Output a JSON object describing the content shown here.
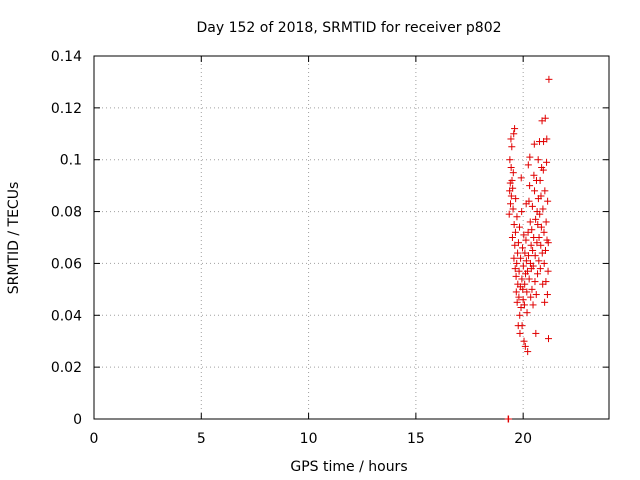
{
  "chart_data": {
    "type": "scatter",
    "title": "Day 152 of 2018, SRMTID for receiver p802",
    "xlabel": "GPS time / hours",
    "ylabel": "SRMTID / TECUs",
    "xlim": [
      0,
      24
    ],
    "ylim": [
      0,
      0.14
    ],
    "xticks": [
      0,
      5,
      10,
      15,
      20
    ],
    "xtick_labels": [
      "0",
      "5",
      "10",
      "15",
      "20"
    ],
    "yticks": [
      0,
      0.02,
      0.04,
      0.06,
      0.08,
      0.1,
      0.12,
      0.14
    ],
    "ytick_labels": [
      "0",
      "0.02",
      "0.04",
      "0.06",
      "0.08",
      "0.1",
      "0.12",
      "0.14"
    ],
    "grid": true,
    "marker": "+",
    "series": [
      {
        "name": "SRMTID",
        "color": "#e00000",
        "points": [
          [
            19.3,
            0.0
          ],
          [
            19.32,
            0.0
          ],
          [
            19.35,
            0.079
          ],
          [
            19.37,
            0.088
          ],
          [
            19.38,
            0.1
          ],
          [
            19.4,
            0.091
          ],
          [
            19.41,
            0.083
          ],
          [
            19.43,
            0.108
          ],
          [
            19.44,
            0.097
          ],
          [
            19.45,
            0.086
          ],
          [
            19.47,
            0.105
          ],
          [
            19.48,
            0.092
          ],
          [
            19.5,
            0.07
          ],
          [
            19.51,
            0.089
          ],
          [
            19.53,
            0.081
          ],
          [
            19.54,
            0.095
          ],
          [
            19.56,
            0.11
          ],
          [
            19.57,
            0.062
          ],
          [
            19.58,
            0.075
          ],
          [
            19.6,
            0.112
          ],
          [
            19.61,
            0.067
          ],
          [
            19.63,
            0.058
          ],
          [
            19.64,
            0.072
          ],
          [
            19.65,
            0.085
          ],
          [
            19.67,
            0.055
          ],
          [
            19.68,
            0.049
          ],
          [
            19.7,
            0.06
          ],
          [
            19.71,
            0.078
          ],
          [
            19.72,
            0.045
          ],
          [
            19.74,
            0.064
          ],
          [
            19.75,
            0.052
          ],
          [
            19.77,
            0.036
          ],
          [
            19.78,
            0.068
          ],
          [
            19.8,
            0.047
          ],
          [
            19.81,
            0.057
          ],
          [
            19.83,
            0.074
          ],
          [
            19.84,
            0.04
          ],
          [
            19.85,
            0.033
          ],
          [
            19.87,
            0.051
          ],
          [
            19.88,
            0.062
          ],
          [
            19.9,
            0.043
          ],
          [
            19.91,
            0.093
          ],
          [
            19.93,
            0.08
          ],
          [
            19.94,
            0.054
          ],
          [
            19.95,
            0.036
          ],
          [
            19.97,
            0.066
          ],
          [
            19.98,
            0.05
          ],
          [
            20.0,
            0.046
          ],
          [
            20.01,
            0.059
          ],
          [
            20.03,
            0.071
          ],
          [
            20.04,
            0.03
          ],
          [
            20.06,
            0.044
          ],
          [
            20.07,
            0.052
          ],
          [
            20.08,
            0.064
          ],
          [
            20.1,
            0.028
          ],
          [
            20.11,
            0.056
          ],
          [
            20.13,
            0.069
          ],
          [
            20.14,
            0.083
          ],
          [
            20.15,
            0.061
          ],
          [
            20.17,
            0.049
          ],
          [
            20.18,
            0.041
          ],
          [
            20.2,
            0.057
          ],
          [
            20.21,
            0.026
          ],
          [
            20.23,
            0.072
          ],
          [
            20.24,
            0.098
          ],
          [
            20.25,
            0.063
          ],
          [
            20.27,
            0.084
          ],
          [
            20.28,
            0.054
          ],
          [
            20.3,
            0.09
          ],
          [
            20.31,
            0.101
          ],
          [
            20.33,
            0.076
          ],
          [
            20.34,
            0.06
          ],
          [
            20.35,
            0.047
          ],
          [
            20.37,
            0.067
          ],
          [
            20.38,
            0.058
          ],
          [
            20.4,
            0.073
          ],
          [
            20.41,
            0.05
          ],
          [
            20.43,
            0.082
          ],
          [
            20.44,
            0.065
          ],
          [
            20.46,
            0.044
          ],
          [
            20.47,
            0.059
          ],
          [
            20.49,
            0.07
          ],
          [
            20.5,
            0.094
          ],
          [
            20.52,
            0.106
          ],
          [
            20.53,
            0.088
          ],
          [
            20.55,
            0.053
          ],
          [
            20.56,
            0.063
          ],
          [
            20.58,
            0.077
          ],
          [
            20.59,
            0.033
          ],
          [
            20.61,
            0.048
          ],
          [
            20.62,
            0.092
          ],
          [
            20.64,
            0.068
          ],
          [
            20.65,
            0.08
          ],
          [
            20.67,
            0.056
          ],
          [
            20.68,
            0.075
          ],
          [
            20.7,
            0.1
          ],
          [
            20.71,
            0.085
          ],
          [
            20.73,
            0.061
          ],
          [
            20.74,
            0.07
          ],
          [
            20.76,
            0.107
          ],
          [
            20.77,
            0.079
          ],
          [
            20.79,
            0.092
          ],
          [
            20.8,
            0.058
          ],
          [
            20.82,
            0.067
          ],
          [
            20.83,
            0.086
          ],
          [
            20.85,
            0.074
          ],
          [
            20.86,
            0.097
          ],
          [
            20.88,
            0.115
          ],
          [
            20.89,
            0.064
          ],
          [
            20.91,
            0.052
          ],
          [
            20.92,
            0.081
          ],
          [
            20.94,
            0.096
          ],
          [
            20.95,
            0.107
          ],
          [
            20.97,
            0.072
          ],
          [
            20.98,
            0.06
          ],
          [
            21.0,
            0.045
          ],
          [
            21.01,
            0.088
          ],
          [
            21.03,
            0.116
          ],
          [
            21.04,
            0.065
          ],
          [
            21.06,
            0.053
          ],
          [
            21.07,
            0.076
          ],
          [
            21.09,
            0.099
          ],
          [
            21.1,
            0.108
          ],
          [
            21.11,
            0.069
          ],
          [
            21.13,
            0.048
          ],
          [
            21.14,
            0.084
          ],
          [
            21.16,
            0.057
          ],
          [
            21.17,
            0.068
          ],
          [
            21.18,
            0.031
          ],
          [
            21.2,
            0.131
          ]
        ]
      }
    ]
  }
}
